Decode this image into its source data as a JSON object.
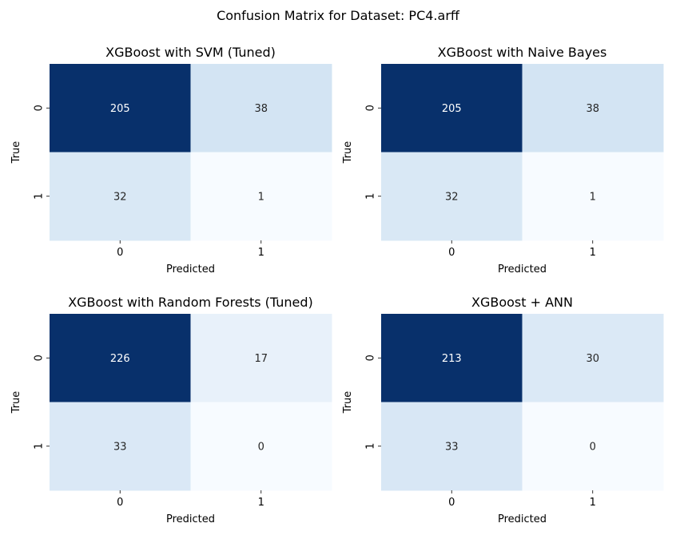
{
  "figure": {
    "suptitle": "Confusion Matrix for Dataset: PC4.arff"
  },
  "chart_data": [
    {
      "type": "heatmap",
      "title": "XGBoost with SVM (Tuned)",
      "xlabel": "Predicted",
      "ylabel": "True",
      "x_ticks": [
        "0",
        "1"
      ],
      "y_ticks": [
        "0",
        "1"
      ],
      "values": [
        [
          205,
          38
        ],
        [
          32,
          1
        ]
      ],
      "colormap": "Blues",
      "colorbar": false
    },
    {
      "type": "heatmap",
      "title": "XGBoost with Naive Bayes",
      "xlabel": "Predicted",
      "ylabel": "True",
      "x_ticks": [
        "0",
        "1"
      ],
      "y_ticks": [
        "0",
        "1"
      ],
      "values": [
        [
          205,
          38
        ],
        [
          32,
          1
        ]
      ],
      "colormap": "Blues",
      "colorbar": false
    },
    {
      "type": "heatmap",
      "title": "XGBoost with Random Forests (Tuned)",
      "xlabel": "Predicted",
      "ylabel": "True",
      "x_ticks": [
        "0",
        "1"
      ],
      "y_ticks": [
        "0",
        "1"
      ],
      "values": [
        [
          226,
          17
        ],
        [
          33,
          0
        ]
      ],
      "colormap": "Blues",
      "colorbar": false
    },
    {
      "type": "heatmap",
      "title": "XGBoost + ANN",
      "xlabel": "Predicted",
      "ylabel": "True",
      "x_ticks": [
        "0",
        "1"
      ],
      "y_ticks": [
        "0",
        "1"
      ],
      "values": [
        [
          213,
          30
        ],
        [
          33,
          0
        ]
      ],
      "colormap": "Blues",
      "colorbar": false
    }
  ]
}
